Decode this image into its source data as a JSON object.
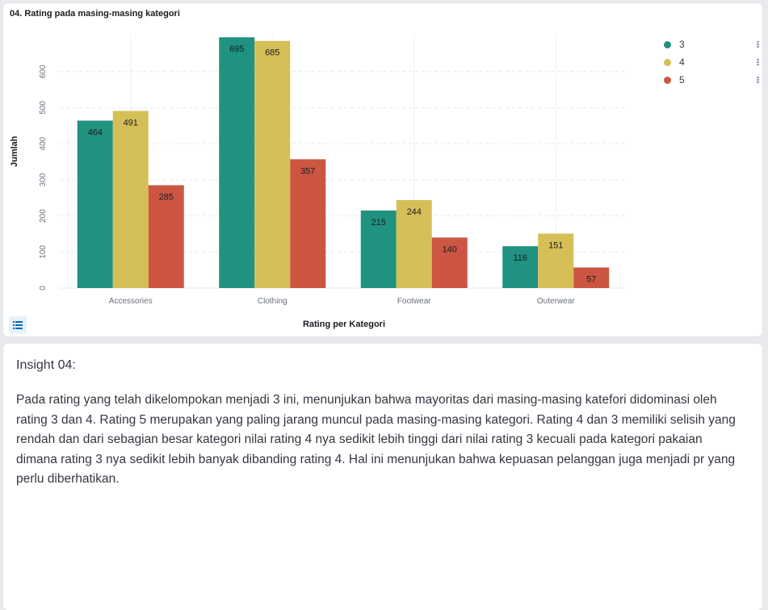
{
  "chart_panel": {
    "title": "04. Rating pada masing-masing kategori"
  },
  "chart_data": {
    "type": "bar",
    "categories": [
      "Accessories",
      "Clothing",
      "Footwear",
      "Outerwear"
    ],
    "series": [
      {
        "name": "3",
        "color": "#209280",
        "values": [
          464,
          695,
          215,
          116
        ]
      },
      {
        "name": "4",
        "color": "#d6bf57",
        "values": [
          491,
          685,
          244,
          151
        ]
      },
      {
        "name": "5",
        "color": "#cc5642",
        "values": [
          285,
          357,
          140,
          57
        ]
      }
    ],
    "xlabel": "Rating per Kategori",
    "ylabel": "Jumlah",
    "yticks": [
      0,
      100,
      200,
      300,
      400,
      500,
      600
    ],
    "ylim": [
      0,
      700
    ],
    "grid": true,
    "legend_position": "top-right"
  },
  "insight": {
    "heading": "Insight 04:",
    "body": "Pada rating yang telah dikelompokan menjadi 3 ini, menunjukan bahwa mayoritas dari masing-masing katefori didominasi oleh rating 3 dan 4. Rating 5 merupakan yang paling jarang muncul pada masing-masing kategori. Rating 4 dan 3 memiliki selisih yang rendah dan dari sebagian besar kategori nilai rating 4 nya sedikit lebih tinggi dari nilai rating 3 kecuali pada kategori pakaian dimana rating 3 nya sedikit lebih banyak dibanding rating 4. Hal ini menunjukan bahwa kepuasan pelanggan juga menjadi pr yang perlu diberhatikan."
  },
  "icons": {
    "legend_toggle": "list-icon",
    "legend_menu": "more-vertical-icon"
  }
}
